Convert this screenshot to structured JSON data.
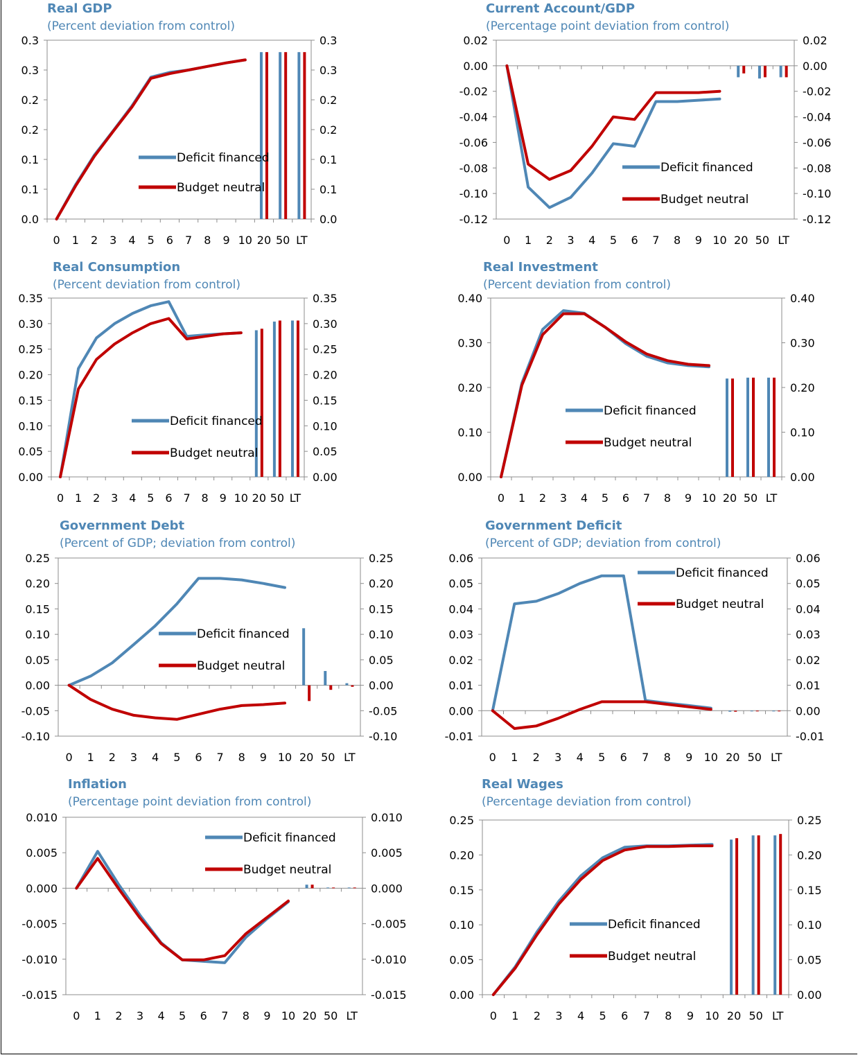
{
  "colors": {
    "deficit": "#4f87b5",
    "budget": "#c00000",
    "axis": "#8c8c8c",
    "title": "#4f87b5"
  },
  "x_labels": [
    "0",
    "1",
    "2",
    "3",
    "4",
    "5",
    "6",
    "7",
    "8",
    "9",
    "10",
    "20",
    "50",
    "LT"
  ],
  "chart_data": [
    {
      "id": "real-gdp",
      "type": "line",
      "title": "Real GDP",
      "subtitle": "(Percent deviation from control)",
      "ylim": [
        0,
        0.3
      ],
      "yticks": [
        0,
        0.05,
        0.1,
        0.15,
        0.2,
        0.25,
        0.3
      ],
      "ytick_labels": [
        "0.0",
        "0.1",
        "0.1",
        "0.2",
        "0.2",
        "0.3",
        "0.3"
      ],
      "x": [
        "0",
        "1",
        "2",
        "3",
        "4",
        "5",
        "6",
        "7",
        "8",
        "9",
        "10"
      ],
      "series": [
        {
          "name": "Deficit financed",
          "color": "#4f87b5",
          "values": [
            0,
            0.057,
            0.107,
            0.148,
            0.19,
            0.238,
            0.246,
            0.25,
            0.256,
            0.262,
            0.267
          ]
        },
        {
          "name": "Budget neutral",
          "color": "#c00000",
          "values": [
            0,
            0.055,
            0.105,
            0.147,
            0.188,
            0.236,
            0.244,
            0.25,
            0.256,
            0.262,
            0.267
          ]
        }
      ],
      "bars": {
        "categories": [
          "20",
          "50",
          "LT"
        ],
        "deficit": [
          0.28,
          0.28,
          0.28
        ],
        "budget": [
          0.28,
          0.28,
          0.28
        ]
      },
      "legend": {
        "position": "center"
      }
    },
    {
      "id": "current-account",
      "type": "line",
      "title": "Current Account/GDP",
      "subtitle": "(Percentage point deviation from control)",
      "ylim": [
        -0.12,
        0.02
      ],
      "yticks": [
        -0.12,
        -0.1,
        -0.08,
        -0.06,
        -0.04,
        -0.02,
        0,
        0.02
      ],
      "ytick_labels": [
        "-0.12",
        "-0.10",
        "-0.08",
        "-0.06",
        "-0.04",
        "-0.02",
        "0.00",
        "0.02"
      ],
      "x": [
        "0",
        "1",
        "2",
        "3",
        "4",
        "5",
        "6",
        "7",
        "8",
        "9",
        "10"
      ],
      "series": [
        {
          "name": "Deficit financed",
          "color": "#4f87b5",
          "values": [
            0,
            -0.095,
            -0.111,
            -0.103,
            -0.084,
            -0.061,
            -0.063,
            -0.028,
            -0.028,
            -0.027,
            -0.026
          ]
        },
        {
          "name": "Budget neutral",
          "color": "#c00000",
          "values": [
            0,
            -0.077,
            -0.089,
            -0.082,
            -0.063,
            -0.04,
            -0.042,
            -0.021,
            -0.021,
            -0.021,
            -0.02
          ]
        }
      ],
      "bars": {
        "categories": [
          "20",
          "50",
          "LT"
        ],
        "deficit": [
          -0.009,
          -0.01,
          -0.009
        ],
        "budget": [
          -0.006,
          -0.009,
          -0.009
        ]
      },
      "legend": {
        "position": "center-right"
      }
    },
    {
      "id": "real-consumption",
      "type": "line",
      "title": "Real Consumption",
      "subtitle": "(Percent deviation from control)",
      "ylim": [
        0,
        0.35
      ],
      "yticks": [
        0,
        0.05,
        0.1,
        0.15,
        0.2,
        0.25,
        0.3,
        0.35
      ],
      "ytick_labels": [
        "0.00",
        "0.05",
        "0.10",
        "0.15",
        "0.20",
        "0.25",
        "0.30",
        "0.35"
      ],
      "x": [
        "0",
        "1",
        "2",
        "3",
        "4",
        "5",
        "6",
        "7",
        "8",
        "9",
        "10"
      ],
      "series": [
        {
          "name": "Deficit financed",
          "color": "#4f87b5",
          "values": [
            0,
            0.212,
            0.272,
            0.3,
            0.32,
            0.335,
            0.343,
            0.275,
            0.278,
            0.28,
            0.282
          ]
        },
        {
          "name": "Budget neutral",
          "color": "#c00000",
          "values": [
            0,
            0.172,
            0.23,
            0.26,
            0.282,
            0.3,
            0.31,
            0.27,
            0.275,
            0.28,
            0.282
          ]
        }
      ],
      "bars": {
        "categories": [
          "20",
          "50",
          "LT"
        ],
        "deficit": [
          0.287,
          0.304,
          0.306
        ],
        "budget": [
          0.29,
          0.306,
          0.306
        ]
      },
      "legend": {
        "position": "center"
      }
    },
    {
      "id": "real-investment",
      "type": "line",
      "title": "Real Investment",
      "subtitle": "(Percent deviation from control)",
      "ylim": [
        0,
        0.4
      ],
      "yticks": [
        0,
        0.1,
        0.2,
        0.3,
        0.4
      ],
      "ytick_labels": [
        "0.00",
        "0.10",
        "0.20",
        "0.30",
        "0.40"
      ],
      "x": [
        "0",
        "1",
        "2",
        "3",
        "4",
        "5",
        "6",
        "7",
        "8",
        "9",
        "10"
      ],
      "series": [
        {
          "name": "Deficit financed",
          "color": "#4f87b5",
          "values": [
            0,
            0.21,
            0.33,
            0.372,
            0.366,
            0.335,
            0.298,
            0.27,
            0.255,
            0.249,
            0.246
          ]
        },
        {
          "name": "Budget neutral",
          "color": "#c00000",
          "values": [
            0,
            0.205,
            0.318,
            0.365,
            0.365,
            0.335,
            0.302,
            0.275,
            0.26,
            0.252,
            0.249
          ]
        }
      ],
      "bars": {
        "categories": [
          "20",
          "50",
          "LT"
        ],
        "deficit": [
          0.22,
          0.222,
          0.222
        ],
        "budget": [
          0.22,
          0.222,
          0.222
        ]
      },
      "legend": {
        "position": "center-right"
      }
    },
    {
      "id": "government-debt",
      "type": "line",
      "title": "Government Debt",
      "subtitle": "(Percent of GDP; deviation from control)",
      "ylim": [
        -0.1,
        0.25
      ],
      "yticks": [
        -0.1,
        -0.05,
        0,
        0.05,
        0.1,
        0.15,
        0.2,
        0.25
      ],
      "ytick_labels": [
        "-0.10",
        "-0.05",
        "0.00",
        "0.05",
        "0.10",
        "0.15",
        "0.20",
        "0.25"
      ],
      "x": [
        "0",
        "1",
        "2",
        "3",
        "4",
        "5",
        "6",
        "7",
        "8",
        "9",
        "10"
      ],
      "series": [
        {
          "name": "Deficit financed",
          "color": "#4f87b5",
          "values": [
            0,
            0.018,
            0.044,
            0.08,
            0.117,
            0.16,
            0.21,
            0.21,
            0.207,
            0.2,
            0.192
          ]
        },
        {
          "name": "Budget neutral",
          "color": "#c00000",
          "values": [
            0,
            -0.028,
            -0.047,
            -0.059,
            -0.064,
            -0.067,
            -0.057,
            -0.047,
            -0.04,
            -0.038,
            -0.035
          ]
        }
      ],
      "bars": {
        "categories": [
          "20",
          "50",
          "LT"
        ],
        "deficit": [
          0.112,
          0.028,
          0.004
        ],
        "budget": [
          -0.031,
          -0.009,
          -0.003
        ]
      },
      "legend": {
        "position": "center"
      }
    },
    {
      "id": "government-deficit",
      "type": "line",
      "title": "Government Deficit",
      "subtitle": "(Percent of GDP; deviation from control)",
      "ylim": [
        -0.01,
        0.06
      ],
      "yticks": [
        -0.01,
        0,
        0.01,
        0.02,
        0.03,
        0.04,
        0.05,
        0.06
      ],
      "ytick_labels": [
        "-0.01",
        "0.00",
        "0.01",
        "0.02",
        "0.03",
        "0.04",
        "0.05",
        "0.06"
      ],
      "x": [
        "0",
        "1",
        "2",
        "3",
        "4",
        "5",
        "6",
        "7",
        "8",
        "9",
        "10"
      ],
      "series": [
        {
          "name": "Deficit financed",
          "color": "#4f87b5",
          "values": [
            0,
            0.042,
            0.043,
            0.046,
            0.05,
            0.053,
            0.053,
            0.004,
            0.003,
            0.002,
            0.001
          ]
        },
        {
          "name": "Budget neutral",
          "color": "#c00000",
          "values": [
            0,
            -0.007,
            -0.006,
            -0.003,
            0.0005,
            0.0035,
            0.0035,
            0.0035,
            0.0025,
            0.0015,
            0.0005
          ]
        }
      ],
      "bars": {
        "categories": [
          "20",
          "50",
          "LT"
        ],
        "deficit": [
          -0.0004,
          -0.0002,
          -0.0002
        ],
        "budget": [
          -0.0004,
          -0.0002,
          -0.0002
        ]
      },
      "legend": {
        "position": "top-right"
      }
    },
    {
      "id": "inflation",
      "type": "line",
      "title": "Inflation",
      "subtitle": "(Percentage point deviation from control)",
      "ylim": [
        -0.015,
        0.01
      ],
      "yticks": [
        -0.015,
        -0.01,
        -0.005,
        0,
        0.005,
        0.01
      ],
      "ytick_labels": [
        "-0.015",
        "-0.010",
        "-0.005",
        "0.000",
        "0.005",
        "0.010"
      ],
      "x": [
        "0",
        "1",
        "2",
        "3",
        "4",
        "5",
        "6",
        "7",
        "8",
        "9",
        "10"
      ],
      "series": [
        {
          "name": "Deficit financed",
          "color": "#4f87b5",
          "values": [
            0,
            0.0052,
            0.0005,
            -0.0038,
            -0.0077,
            -0.0101,
            -0.0103,
            -0.0105,
            -0.0069,
            -0.0043,
            -0.0019
          ]
        },
        {
          "name": "Budget neutral",
          "color": "#c00000",
          "values": [
            0,
            0.0042,
            -0.0001,
            -0.0042,
            -0.0078,
            -0.0101,
            -0.0101,
            -0.0095,
            -0.0064,
            -0.0041,
            -0.0018
          ]
        }
      ],
      "bars": {
        "categories": [
          "20",
          "50",
          "LT"
        ],
        "deficit": [
          0.0005,
          0.0001,
          0.0001
        ],
        "budget": [
          0.0005,
          0.0001,
          0.0001
        ]
      },
      "legend": {
        "position": "top-right"
      }
    },
    {
      "id": "real-wages",
      "type": "line",
      "title": "Real Wages",
      "subtitle": "(Percentage deviation from control)",
      "ylim": [
        0,
        0.25
      ],
      "yticks": [
        0,
        0.05,
        0.1,
        0.15,
        0.2,
        0.25
      ],
      "ytick_labels": [
        "0.00",
        "0.05",
        "0.10",
        "0.15",
        "0.20",
        "0.25"
      ],
      "x": [
        "0",
        "1",
        "2",
        "3",
        "4",
        "5",
        "6",
        "7",
        "8",
        "9",
        "10"
      ],
      "series": [
        {
          "name": "Deficit financed",
          "color": "#4f87b5",
          "values": [
            0,
            0.04,
            0.09,
            0.134,
            0.17,
            0.196,
            0.211,
            0.213,
            0.213,
            0.214,
            0.215
          ]
        },
        {
          "name": "Budget neutral",
          "color": "#c00000",
          "values": [
            0,
            0.038,
            0.086,
            0.13,
            0.165,
            0.192,
            0.207,
            0.212,
            0.212,
            0.213,
            0.213
          ]
        }
      ],
      "bars": {
        "categories": [
          "20",
          "50",
          "LT"
        ],
        "deficit": [
          0.222,
          0.228,
          0.228
        ],
        "budget": [
          0.224,
          0.228,
          0.23
        ]
      },
      "legend": {
        "position": "center"
      }
    }
  ]
}
